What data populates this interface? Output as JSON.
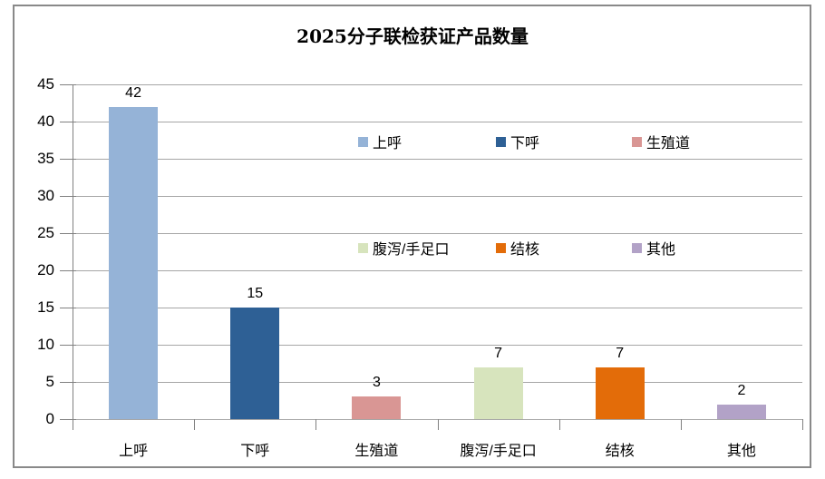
{
  "chart_data": {
    "type": "bar",
    "title": "2025分子联检获证产品数量",
    "categories": [
      "上呼",
      "下呼",
      "生殖道",
      "腹泻/手足口",
      "结核",
      "其他"
    ],
    "values": [
      42,
      15,
      3,
      7,
      7,
      2
    ],
    "colors": [
      "#95B3D7",
      "#2E6095",
      "#D99694",
      "#D7E4BD",
      "#E36C09",
      "#B2A2C7"
    ],
    "data_labels": [
      "42",
      "15",
      "3",
      "7",
      "7",
      "2"
    ],
    "xlabel": "",
    "ylabel": "",
    "ylim": [
      0,
      45
    ],
    "ytick_step": 5,
    "ytick_labels": [
      "0",
      "5",
      "10",
      "15",
      "20",
      "25",
      "30",
      "35",
      "40",
      "45"
    ],
    "grid": true,
    "legend": {
      "position": "inside plot, upper middle-right, two rows",
      "entries": [
        {
          "label": "上呼",
          "color": "#95B3D7"
        },
        {
          "label": "下呼",
          "color": "#2E6095"
        },
        {
          "label": "生殖道",
          "color": "#D99694"
        },
        {
          "label": "腹泻/手足口",
          "color": "#D7E4BD"
        },
        {
          "label": "结核",
          "color": "#E36C09"
        },
        {
          "label": "其他",
          "color": "#B2A2C7"
        }
      ]
    }
  }
}
